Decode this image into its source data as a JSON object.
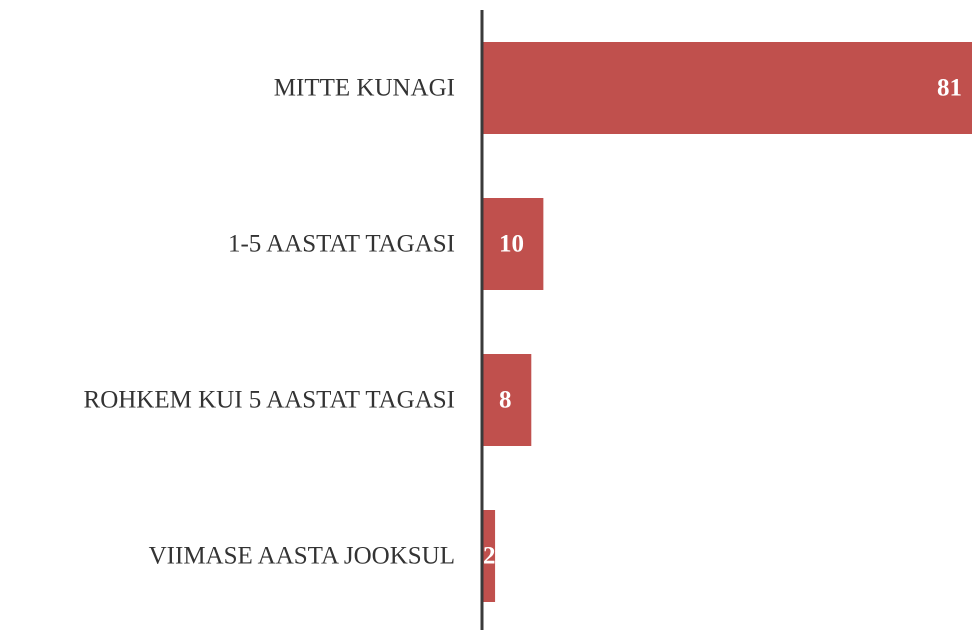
{
  "chart_data": {
    "type": "bar",
    "orientation": "horizontal",
    "categories": [
      "MITTE KUNAGI",
      "1-5 AASTAT TAGASI",
      "ROHKEM KUI 5 AASTAT TAGASI",
      "VIIMASE AASTA JOOKSUL"
    ],
    "values": [
      81,
      10,
      8,
      2
    ],
    "color": "#c0504d"
  }
}
